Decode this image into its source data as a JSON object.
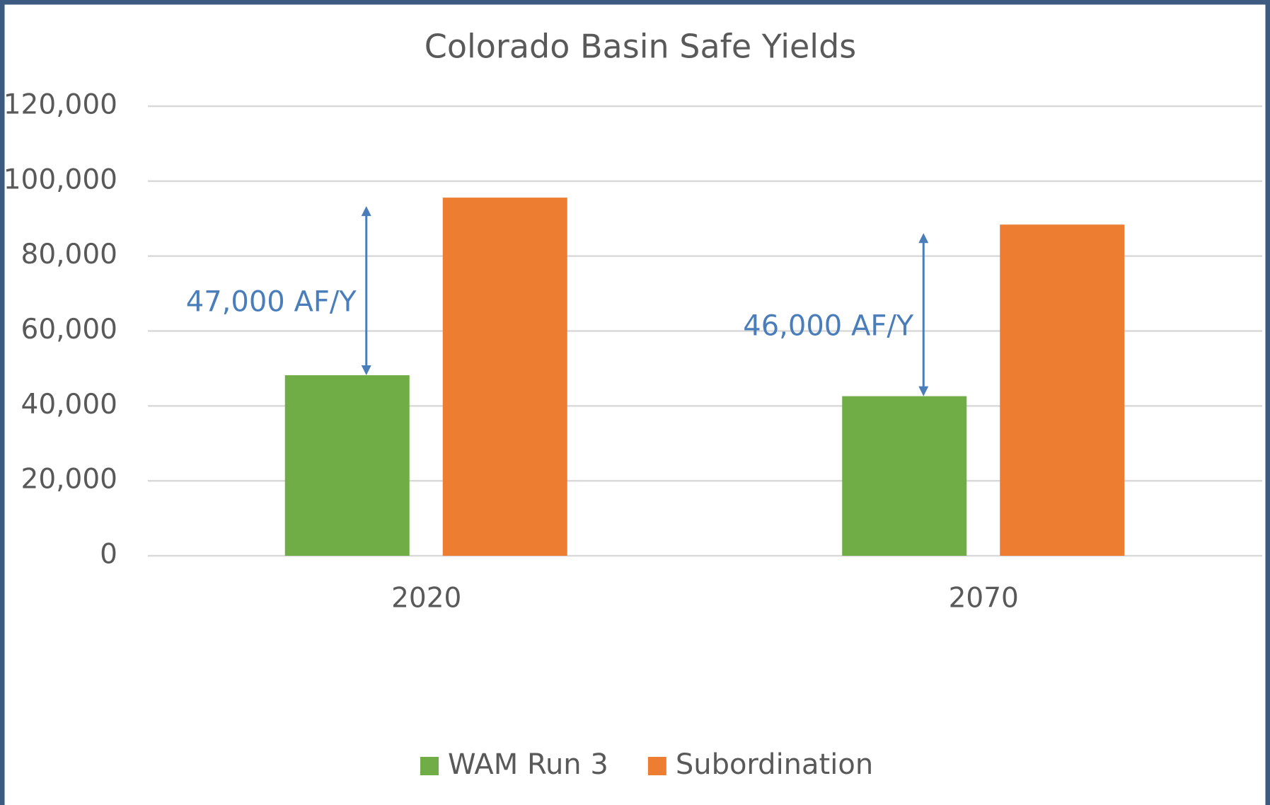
{
  "chart_data": {
    "type": "bar",
    "title": "Colorado Basin Safe Yields",
    "categories": [
      "2020",
      "2070"
    ],
    "series": [
      {
        "name": "WAM Run 3",
        "color": "#70ad47",
        "values": [
          48200,
          42600
        ]
      },
      {
        "name": "Subordination",
        "color": "#ed7d31",
        "values": [
          95600,
          88400
        ]
      }
    ],
    "annotations": [
      "47,000 AF/Y",
      "46,000 AF/Y"
    ],
    "annotation_color": "#4a7ebb",
    "ylim": [
      0,
      120000
    ],
    "yticks": [
      0,
      {
        "value": 20000,
        "label": "20,000"
      },
      {
        "value": 40000,
        "label": "40,000"
      },
      {
        "value": 60000,
        "label": "60,000"
      },
      {
        "value": 80000,
        "label": "80,000"
      },
      {
        "value": 100000,
        "label": "100,000"
      },
      {
        "value": 120000,
        "label": "120,000"
      }
    ],
    "grid": true,
    "legend": "bottom"
  }
}
